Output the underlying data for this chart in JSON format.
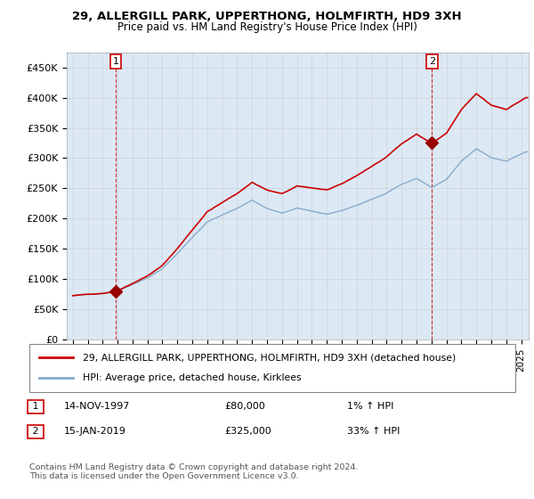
{
  "title": "29, ALLERGILL PARK, UPPERTHONG, HOLMFIRTH, HD9 3XH",
  "subtitle": "Price paid vs. HM Land Registry's House Price Index (HPI)",
  "ylabel_ticks": [
    "£0",
    "£50K",
    "£100K",
    "£150K",
    "£200K",
    "£250K",
    "£300K",
    "£350K",
    "£400K",
    "£450K"
  ],
  "ytick_values": [
    0,
    50000,
    100000,
    150000,
    200000,
    250000,
    300000,
    350000,
    400000,
    450000
  ],
  "ylim": [
    0,
    475000
  ],
  "xlim_start": 1994.6,
  "xlim_end": 2025.5,
  "sale1_x": 1997.87,
  "sale1_y": 80000,
  "sale1_label": "14-NOV-1997",
  "sale1_price": "£80,000",
  "sale1_hpi": "1% ↑ HPI",
  "sale2_x": 2019.04,
  "sale2_y": 325000,
  "sale2_label": "15-JAN-2019",
  "sale2_price": "£325,000",
  "sale2_hpi": "33% ↑ HPI",
  "line1_label": "29, ALLERGILL PARK, UPPERTHONG, HOLMFIRTH, HD9 3XH (detached house)",
  "line2_label": "HPI: Average price, detached house, Kirklees",
  "line1_color": "#cc0000",
  "line2_color": "#88aacc",
  "marker_color": "#990000",
  "vline_color": "#cc0000",
  "grid_color": "#cccccc",
  "bg_color": "#ffffff",
  "plot_bg_color": "#dce9f5",
  "footer": "Contains HM Land Registry data © Crown copyright and database right 2024.\nThis data is licensed under the Open Government Licence v3.0.",
  "annotation1": "1",
  "annotation2": "2"
}
